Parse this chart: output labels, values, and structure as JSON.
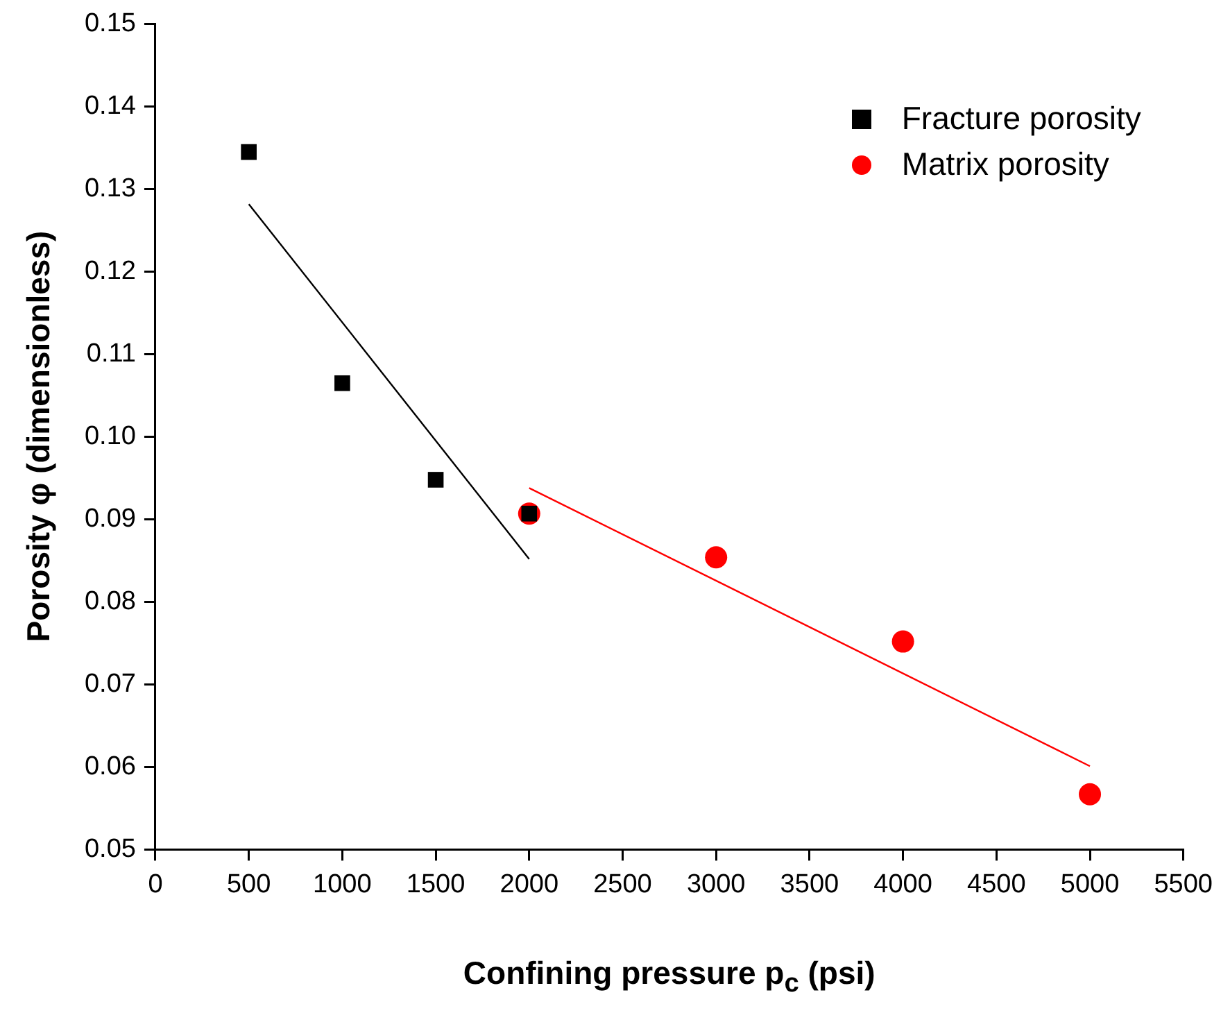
{
  "chart_data": {
    "type": "scatter",
    "xlabel": "Confining pressure p$_{c}$ (psi)",
    "ylabel": "Porosity  φ (dimensionless)",
    "xlim": [
      0,
      5500
    ],
    "xticks": [
      0,
      500,
      1000,
      1500,
      2000,
      2500,
      3000,
      3500,
      4000,
      4500,
      5000,
      5500
    ],
    "ylim": [
      0.05,
      0.15
    ],
    "yticks": [
      0.05,
      0.06,
      0.07,
      0.08,
      0.09,
      {
        "value": 0.1,
        "label": "0.10"
      },
      0.11,
      0.12,
      0.13,
      0.14,
      0.15
    ],
    "grid": false,
    "legend": "top right",
    "series": [
      {
        "name": "Fracture porosity",
        "type": "scatter",
        "marker": "square",
        "color": "#000000",
        "x": [
          500,
          1000,
          1500,
          2000
        ],
        "values": [
          0.1345,
          0.1065,
          0.0948,
          0.0907
        ]
      },
      {
        "name": "Matrix porosity",
        "type": "scatter",
        "marker": "circle",
        "color": "#ff0000",
        "x": [
          2000,
          3000,
          4000,
          5000
        ],
        "values": [
          0.0907,
          0.0854,
          0.0752,
          0.0567
        ]
      },
      {
        "type": "line",
        "color": "#000000",
        "x": [
          500,
          2000
        ],
        "values": [
          0.1282,
          0.0852
        ]
      },
      {
        "type": "line",
        "color": "#ff0000",
        "x": [
          2000,
          5000
        ],
        "values": [
          0.0938,
          0.0601
        ]
      }
    ]
  }
}
